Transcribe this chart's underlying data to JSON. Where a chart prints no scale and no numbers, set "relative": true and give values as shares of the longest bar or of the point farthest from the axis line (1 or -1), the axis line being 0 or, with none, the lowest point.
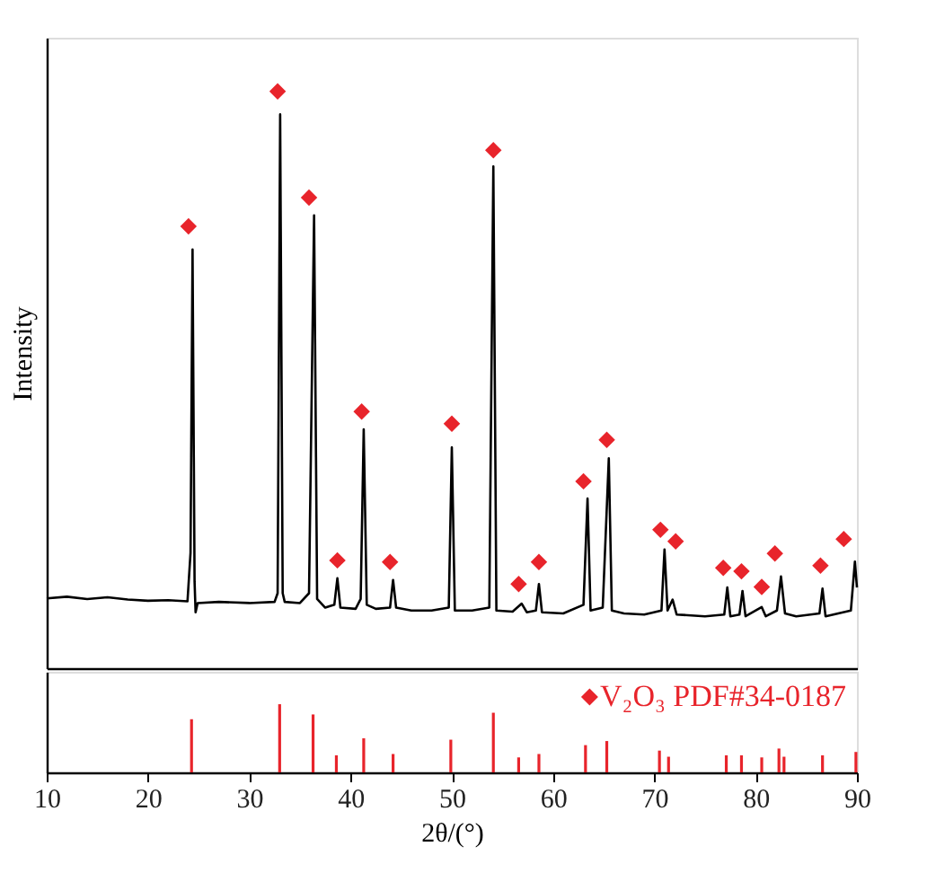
{
  "chart_data": [
    {
      "type": "line",
      "ylabel": "Intensity",
      "relative": true,
      "xlim": [
        10,
        90
      ],
      "tick_labels": false,
      "grid": false,
      "series": [
        {
          "type": "line",
          "color": "#000000",
          "line_style": "solid",
          "x": [
            10,
            12,
            14,
            16,
            18,
            20,
            22,
            23.9,
            24.2,
            24.4,
            24.6,
            24.7,
            24.9,
            27,
            30,
            32.5,
            32.8,
            33.05,
            33.3,
            33.5,
            35,
            35.9,
            36.4,
            36.7,
            37.5,
            38.4,
            38.7,
            39.0,
            40.5,
            41.0,
            41.3,
            41.6,
            42.5,
            43.9,
            44.2,
            44.5,
            46,
            48,
            49.7,
            50.0,
            50.3,
            52,
            53.7,
            54.1,
            54.4,
            56,
            56.9,
            57.4,
            58.3,
            58.6,
            58.9,
            61,
            63.0,
            63.4,
            63.7,
            64.9,
            65.5,
            65.8,
            67,
            69,
            70.7,
            71.0,
            71.3,
            71.8,
            72.2,
            75,
            76.9,
            77.2,
            77.5,
            78.4,
            78.7,
            79.0,
            80.6,
            81,
            82.1,
            82.5,
            82.9,
            84,
            86.3,
            86.6,
            86.9,
            89.4,
            89.8,
            90
          ],
          "values": [
            0.121,
            0.124,
            0.12,
            0.123,
            0.119,
            0.117,
            0.118,
            0.116,
            0.2,
            0.726,
            0.15,
            0.097,
            0.113,
            0.115,
            0.113,
            0.115,
            0.13,
            0.96,
            0.13,
            0.115,
            0.113,
            0.13,
            0.785,
            0.12,
            0.105,
            0.11,
            0.156,
            0.105,
            0.103,
            0.12,
            0.414,
            0.11,
            0.103,
            0.105,
            0.153,
            0.105,
            0.1,
            0.1,
            0.105,
            0.383,
            0.1,
            0.1,
            0.105,
            0.87,
            0.1,
            0.098,
            0.112,
            0.097,
            0.1,
            0.146,
            0.097,
            0.095,
            0.11,
            0.294,
            0.1,
            0.105,
            0.364,
            0.1,
            0.095,
            0.093,
            0.1,
            0.206,
            0.1,
            0.119,
            0.093,
            0.09,
            0.093,
            0.14,
            0.09,
            0.093,
            0.134,
            0.09,
            0.106,
            0.09,
            0.1,
            0.159,
            0.095,
            0.09,
            0.095,
            0.138,
            0.09,
            0.1,
            0.185,
            0.14
          ]
        },
        {
          "type": "scatter",
          "color": "#e8242b",
          "marker": "diamond",
          "x": [
            24.0,
            32.8,
            35.9,
            38.7,
            41.1,
            43.9,
            50.0,
            54.1,
            56.6,
            58.6,
            63.0,
            65.3,
            70.6,
            72.1,
            76.8,
            78.6,
            80.6,
            81.9,
            86.4,
            88.7
          ],
          "values": [
            0.766,
            1.0,
            0.816,
            0.187,
            0.445,
            0.184,
            0.424,
            0.898,
            0.146,
            0.184,
            0.324,
            0.396,
            0.24,
            0.22,
            0.174,
            0.168,
            0.141,
            0.199,
            0.178,
            0.224
          ]
        }
      ]
    },
    {
      "type": "bar",
      "xlabel": "2θ/(°)",
      "relative": true,
      "xlim": [
        10,
        90
      ],
      "xticks": [
        10,
        20,
        30,
        40,
        50,
        60,
        70,
        80,
        90
      ],
      "tick_labels": "x",
      "grid": false,
      "legend": "top right",
      "marker": "diamond",
      "x": [
        24.3,
        33.0,
        36.3,
        38.6,
        41.3,
        44.2,
        49.9,
        54.1,
        56.6,
        58.6,
        63.2,
        65.3,
        70.5,
        71.4,
        77.1,
        78.6,
        80.6,
        82.3,
        82.8,
        86.6,
        89.9
      ],
      "series": [
        {
          "name": "V₂O₃ PDF#34-0187",
          "color": "#e8242b",
          "values": [
            0.78,
            1.0,
            0.85,
            0.25,
            0.5,
            0.27,
            0.48,
            0.875,
            0.22,
            0.27,
            0.4,
            0.46,
            0.32,
            0.23,
            0.25,
            0.25,
            0.22,
            0.35,
            0.23,
            0.25,
            0.3
          ]
        }
      ]
    }
  ]
}
